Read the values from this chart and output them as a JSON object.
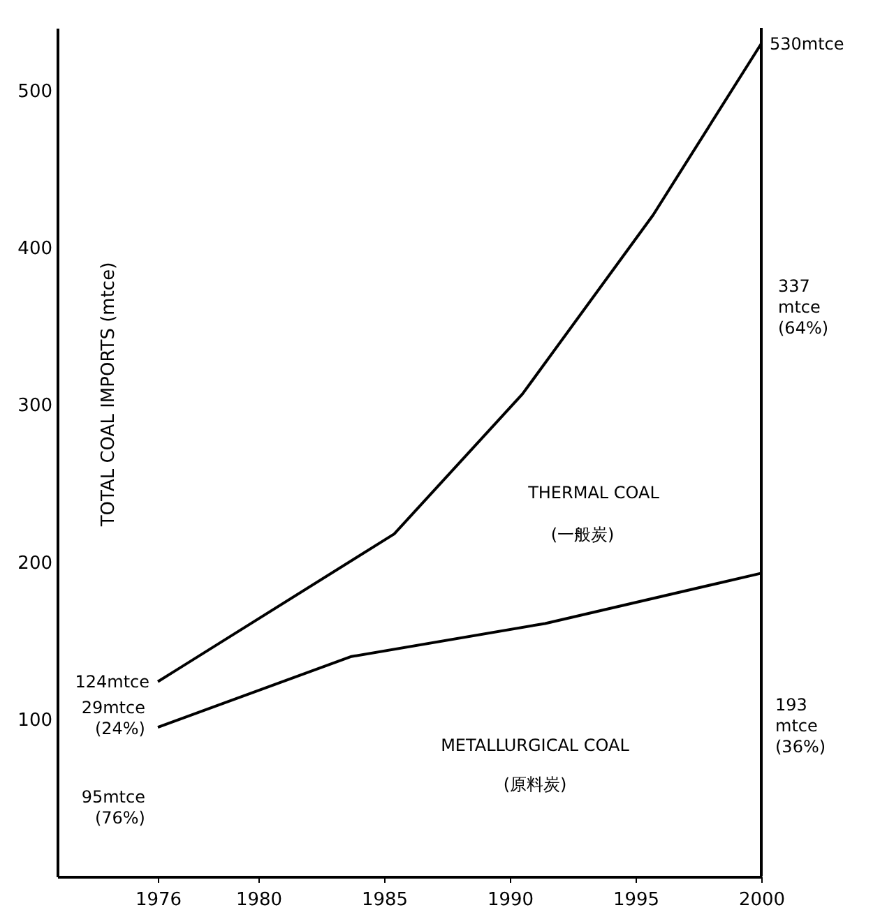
{
  "chart_data": {
    "type": "line",
    "ylabel": "TOTAL COAL IMPORTS (mtce)",
    "xlim": [
      1972,
      2000
    ],
    "xticks": [
      1976,
      1980,
      1985,
      1990,
      1995,
      2000
    ],
    "ylim": [
      0,
      540
    ],
    "yticks": [
      100,
      200,
      300,
      400,
      500
    ],
    "grid": false,
    "marker": "none",
    "line_style": "solid",
    "series": [
      {
        "color": "#000000",
        "x": [
          1976,
          1985.4,
          1990.5,
          1995.7,
          2000
        ],
        "values": [
          124,
          218,
          307,
          421,
          530
        ]
      },
      {
        "color": "#000000",
        "x": [
          1976,
          1983.7,
          1991.4,
          2000
        ],
        "values": [
          95,
          140,
          161,
          193
        ]
      }
    ],
    "annotations": [
      {
        "text": "124mtce",
        "x": 1976,
        "y": 124
      },
      "29mtce\n(24%)",
      "95mtce\n(76%)",
      {
        "text": "530mtce",
        "x": 2000,
        "y": 530
      },
      "337\nmtce\n(64%)",
      "193\nmtce\n(36%)",
      "THERMAL COAL",
      "(一般炭)",
      "METALLURGICAL COAL",
      "(原料炭)"
    ]
  }
}
